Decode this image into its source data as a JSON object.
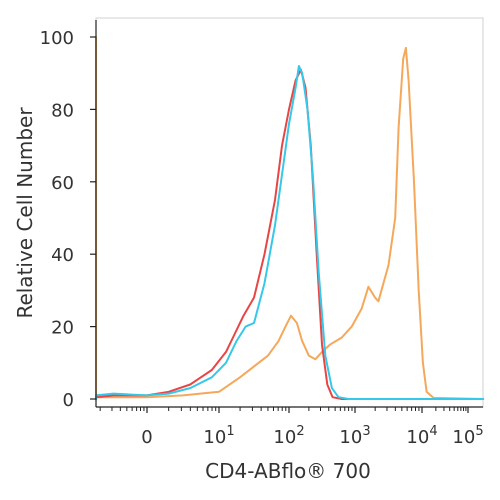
{
  "chart_data": {
    "type": "line",
    "xlabel": "CD4-ABflo® 700",
    "ylabel": "Relative Cell Number",
    "xscale": "biexponential",
    "xlim": [
      -1,
      5
    ],
    "ylim": [
      0,
      100
    ],
    "yticks": [
      {
        "value": 0,
        "label": "0"
      },
      {
        "value": 20,
        "label": "20"
      },
      {
        "value": 40,
        "label": "40"
      },
      {
        "value": 60,
        "label": "60"
      },
      {
        "value": 80,
        "label": "80"
      },
      {
        "value": 100,
        "label": "100"
      }
    ],
    "xticks": [
      {
        "value": 0,
        "base": "0",
        "exp": ""
      },
      {
        "value": 1,
        "base": "10",
        "exp": "1"
      },
      {
        "value": 2,
        "base": "10",
        "exp": "2"
      },
      {
        "value": 3,
        "base": "10",
        "exp": "3"
      },
      {
        "value": 4,
        "base": "10",
        "exp": "4"
      },
      {
        "value": 5,
        "base": "10",
        "exp": "5"
      }
    ],
    "series": [
      {
        "color": "#f5a85a",
        "points": [
          [
            -1.25,
            0
          ],
          [
            -1.23,
            100
          ],
          [
            -1.21,
            40
          ],
          [
            -1.18,
            2
          ],
          [
            -1.1,
            0.5
          ],
          [
            -0.5,
            0.5
          ],
          [
            0,
            0.5
          ],
          [
            0.5,
            1
          ],
          [
            1.0,
            2
          ],
          [
            1.3,
            6
          ],
          [
            1.5,
            9
          ],
          [
            1.7,
            12
          ],
          [
            1.85,
            16
          ],
          [
            1.95,
            20
          ],
          [
            2.03,
            23
          ],
          [
            2.12,
            21
          ],
          [
            2.2,
            16
          ],
          [
            2.3,
            12
          ],
          [
            2.4,
            11
          ],
          [
            2.5,
            13
          ],
          [
            2.62,
            15
          ],
          [
            2.8,
            17
          ],
          [
            2.95,
            20
          ],
          [
            3.1,
            25
          ],
          [
            3.2,
            31
          ],
          [
            3.3,
            28
          ],
          [
            3.35,
            27
          ],
          [
            3.5,
            37
          ],
          [
            3.6,
            50
          ],
          [
            3.65,
            75
          ],
          [
            3.72,
            94
          ],
          [
            3.76,
            97
          ],
          [
            3.8,
            88
          ],
          [
            3.88,
            60
          ],
          [
            3.95,
            30
          ],
          [
            4.02,
            10
          ],
          [
            4.1,
            2
          ],
          [
            4.25,
            0.3
          ],
          [
            5.4,
            0
          ]
        ]
      },
      {
        "color": "#e84545",
        "points": [
          [
            -1.25,
            0
          ],
          [
            -1.1,
            0.5
          ],
          [
            -0.5,
            1
          ],
          [
            0,
            1
          ],
          [
            0.3,
            2
          ],
          [
            0.6,
            4
          ],
          [
            0.9,
            8
          ],
          [
            1.1,
            13
          ],
          [
            1.2,
            17
          ],
          [
            1.35,
            23
          ],
          [
            1.5,
            28
          ],
          [
            1.65,
            40
          ],
          [
            1.8,
            55
          ],
          [
            1.9,
            70
          ],
          [
            2.0,
            80
          ],
          [
            2.1,
            88
          ],
          [
            2.18,
            91
          ],
          [
            2.25,
            86
          ],
          [
            2.33,
            70
          ],
          [
            2.42,
            40
          ],
          [
            2.5,
            15
          ],
          [
            2.58,
            4
          ],
          [
            2.66,
            0.5
          ],
          [
            2.8,
            0
          ],
          [
            5.4,
            0
          ]
        ]
      },
      {
        "color": "#35c8e8",
        "points": [
          [
            -1.25,
            0
          ],
          [
            -1.1,
            1
          ],
          [
            -0.5,
            1.5
          ],
          [
            0,
            1
          ],
          [
            0.3,
            1.5
          ],
          [
            0.6,
            3
          ],
          [
            0.9,
            6
          ],
          [
            1.1,
            10
          ],
          [
            1.25,
            16
          ],
          [
            1.38,
            20
          ],
          [
            1.5,
            21
          ],
          [
            1.65,
            32
          ],
          [
            1.8,
            48
          ],
          [
            1.9,
            62
          ],
          [
            2.0,
            76
          ],
          [
            2.1,
            86
          ],
          [
            2.15,
            92
          ],
          [
            2.2,
            90
          ],
          [
            2.28,
            80
          ],
          [
            2.36,
            62
          ],
          [
            2.45,
            35
          ],
          [
            2.55,
            12
          ],
          [
            2.65,
            3
          ],
          [
            2.75,
            0.5
          ],
          [
            2.9,
            0
          ],
          [
            5.4,
            0
          ]
        ]
      }
    ]
  }
}
